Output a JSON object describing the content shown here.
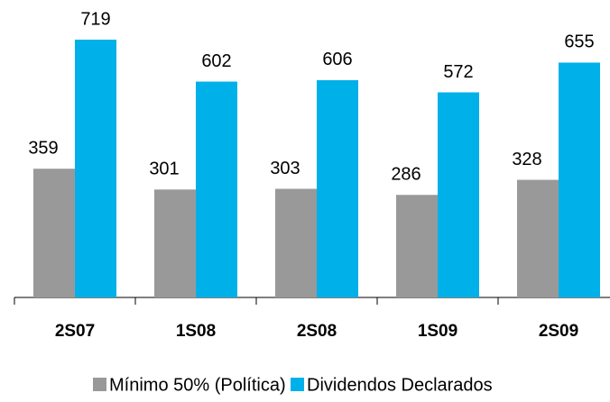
{
  "chart_data": {
    "type": "bar",
    "categories": [
      "2S07",
      "1S08",
      "2S08",
      "1S09",
      "2S09"
    ],
    "series": [
      {
        "name": "Mínimo 50% (Política)",
        "color": "#999999",
        "values": [
          359,
          301,
          303,
          286,
          328
        ]
      },
      {
        "name": "Dividendos Declarados",
        "color": "#00b0e8",
        "values": [
          719,
          602,
          606,
          572,
          655
        ]
      }
    ]
  }
}
